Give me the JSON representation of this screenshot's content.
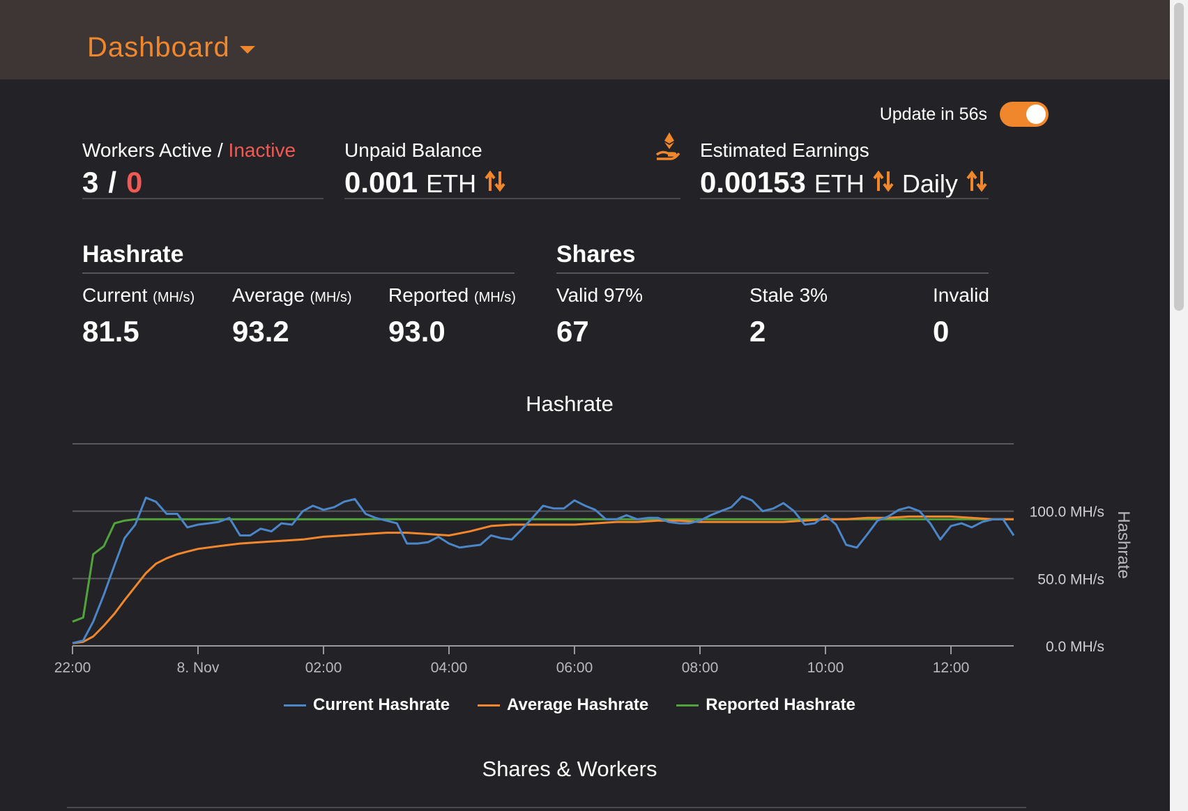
{
  "header": {
    "title": "Dashboard"
  },
  "update": {
    "label": "Update in 56s",
    "enabled": true
  },
  "workers": {
    "label_active": "Workers Active / ",
    "label_inactive": "Inactive",
    "active": "3",
    "separator": "/",
    "inactive": "0"
  },
  "unpaid": {
    "label": "Unpaid Balance",
    "value": "0.001",
    "unit": "ETH"
  },
  "earnings": {
    "label": "Estimated Earnings",
    "value": "0.00153",
    "unit": "ETH",
    "period": "Daily"
  },
  "hashrate": {
    "title": "Hashrate",
    "current": {
      "label": "Current",
      "unit": "(MH/s)",
      "value": "81.5"
    },
    "average": {
      "label": "Average",
      "unit": "(MH/s)",
      "value": "93.2"
    },
    "reported": {
      "label": "Reported",
      "unit": "(MH/s)",
      "value": "93.0"
    }
  },
  "shares": {
    "title": "Shares",
    "valid": {
      "label": "Valid 97%",
      "value": "67"
    },
    "stale": {
      "label": "Stale 3%",
      "value": "2"
    },
    "invalid": {
      "label": "Invalid",
      "value": "0"
    }
  },
  "colors": {
    "accent": "#f0872d",
    "current": "#4a86c8",
    "average": "#f0872d",
    "reported": "#52a33b",
    "inactive": "#ef5a55"
  },
  "chart_data": {
    "type": "line",
    "title": "Hashrate",
    "ylabel": "Hashrate",
    "xlabel": "",
    "ylim": [
      0,
      150
    ],
    "x_range_hours": [
      0,
      15
    ],
    "x_ticks": [
      {
        "h": 0,
        "label": "22:00"
      },
      {
        "h": 2,
        "label": "8. Nov"
      },
      {
        "h": 4,
        "label": "02:00"
      },
      {
        "h": 6,
        "label": "04:00"
      },
      {
        "h": 8,
        "label": "06:00"
      },
      {
        "h": 10,
        "label": "08:00"
      },
      {
        "h": 12,
        "label": "10:00"
      },
      {
        "h": 14,
        "label": "12:00"
      }
    ],
    "y_ticks": [
      {
        "v": 0,
        "label": "0.0 MH/s"
      },
      {
        "v": 50,
        "label": "50.0 MH/s"
      },
      {
        "v": 100,
        "label": "100.0 MH/s"
      }
    ],
    "series": [
      {
        "name": "Current Hashrate",
        "color": "#4a86c8",
        "points": [
          [
            0,
            2
          ],
          [
            0.17,
            4
          ],
          [
            0.33,
            18
          ],
          [
            0.5,
            38
          ],
          [
            0.67,
            60
          ],
          [
            0.83,
            80
          ],
          [
            1,
            90
          ],
          [
            1.17,
            110
          ],
          [
            1.33,
            107
          ],
          [
            1.5,
            98
          ],
          [
            1.67,
            98
          ],
          [
            1.83,
            88
          ],
          [
            2,
            90
          ],
          [
            2.17,
            91
          ],
          [
            2.33,
            92
          ],
          [
            2.5,
            95
          ],
          [
            2.67,
            82
          ],
          [
            2.83,
            82
          ],
          [
            3,
            87
          ],
          [
            3.17,
            85
          ],
          [
            3.33,
            91
          ],
          [
            3.5,
            90
          ],
          [
            3.67,
            100
          ],
          [
            3.83,
            104
          ],
          [
            4,
            101
          ],
          [
            4.17,
            103
          ],
          [
            4.33,
            107
          ],
          [
            4.5,
            109
          ],
          [
            4.67,
            98
          ],
          [
            4.83,
            95
          ],
          [
            5,
            93
          ],
          [
            5.17,
            91
          ],
          [
            5.33,
            76
          ],
          [
            5.5,
            76
          ],
          [
            5.67,
            77
          ],
          [
            5.83,
            81
          ],
          [
            6,
            76
          ],
          [
            6.17,
            73
          ],
          [
            6.33,
            74
          ],
          [
            6.5,
            75
          ],
          [
            6.67,
            82
          ],
          [
            6.83,
            80
          ],
          [
            7,
            79
          ],
          [
            7.17,
            87
          ],
          [
            7.33,
            95
          ],
          [
            7.5,
            104
          ],
          [
            7.67,
            102
          ],
          [
            7.83,
            102
          ],
          [
            8,
            108
          ],
          [
            8.17,
            104
          ],
          [
            8.33,
            101
          ],
          [
            8.5,
            94
          ],
          [
            8.67,
            94
          ],
          [
            8.83,
            97
          ],
          [
            9,
            94
          ],
          [
            9.17,
            95
          ],
          [
            9.33,
            95
          ],
          [
            9.5,
            92
          ],
          [
            9.67,
            91
          ],
          [
            9.83,
            91
          ],
          [
            10,
            93
          ],
          [
            10.17,
            97
          ],
          [
            10.33,
            100
          ],
          [
            10.5,
            103
          ],
          [
            10.67,
            111
          ],
          [
            10.83,
            108
          ],
          [
            11,
            100
          ],
          [
            11.17,
            102
          ],
          [
            11.33,
            106
          ],
          [
            11.5,
            100
          ],
          [
            11.67,
            90
          ],
          [
            11.83,
            91
          ],
          [
            12,
            97
          ],
          [
            12.17,
            90
          ],
          [
            12.33,
            75
          ],
          [
            12.5,
            73
          ],
          [
            12.67,
            83
          ],
          [
            12.83,
            93
          ],
          [
            13,
            96
          ],
          [
            13.17,
            101
          ],
          [
            13.33,
            103
          ],
          [
            13.5,
            100
          ],
          [
            13.67,
            91
          ],
          [
            13.83,
            79
          ],
          [
            14,
            89
          ],
          [
            14.17,
            91
          ],
          [
            14.33,
            88
          ],
          [
            14.5,
            92
          ],
          [
            14.67,
            94
          ],
          [
            14.83,
            94
          ],
          [
            15,
            82
          ]
        ]
      },
      {
        "name": "Average Hashrate",
        "color": "#f0872d",
        "points": [
          [
            0,
            2
          ],
          [
            0.17,
            3
          ],
          [
            0.33,
            7
          ],
          [
            0.5,
            15
          ],
          [
            0.67,
            24
          ],
          [
            0.83,
            34
          ],
          [
            1,
            44
          ],
          [
            1.17,
            54
          ],
          [
            1.33,
            61
          ],
          [
            1.5,
            65
          ],
          [
            1.67,
            68
          ],
          [
            1.83,
            70
          ],
          [
            2,
            72
          ],
          [
            2.33,
            74
          ],
          [
            2.67,
            76
          ],
          [
            3,
            77
          ],
          [
            3.33,
            78
          ],
          [
            3.67,
            79
          ],
          [
            4,
            81
          ],
          [
            4.33,
            82
          ],
          [
            4.67,
            83
          ],
          [
            5,
            84
          ],
          [
            5.33,
            84
          ],
          [
            5.67,
            83
          ],
          [
            6,
            82
          ],
          [
            6.33,
            85
          ],
          [
            6.67,
            89
          ],
          [
            7,
            90
          ],
          [
            7.33,
            90
          ],
          [
            7.67,
            90
          ],
          [
            8,
            90
          ],
          [
            8.33,
            91
          ],
          [
            8.67,
            92
          ],
          [
            9,
            92
          ],
          [
            9.33,
            93
          ],
          [
            9.67,
            93
          ],
          [
            10,
            92
          ],
          [
            10.33,
            92
          ],
          [
            10.67,
            92
          ],
          [
            11,
            92
          ],
          [
            11.33,
            92
          ],
          [
            11.67,
            93
          ],
          [
            12,
            94
          ],
          [
            12.33,
            94
          ],
          [
            12.67,
            95
          ],
          [
            13,
            95
          ],
          [
            13.33,
            96
          ],
          [
            13.67,
            96
          ],
          [
            14,
            96
          ],
          [
            14.33,
            95
          ],
          [
            14.67,
            94
          ],
          [
            15,
            94
          ]
        ]
      },
      {
        "name": "Reported Hashrate",
        "color": "#52a33b",
        "points": [
          [
            0,
            18
          ],
          [
            0.17,
            21
          ],
          [
            0.33,
            68
          ],
          [
            0.5,
            74
          ],
          [
            0.67,
            91
          ],
          [
            0.83,
            93
          ],
          [
            1,
            94
          ],
          [
            1.17,
            94
          ],
          [
            1.33,
            94
          ],
          [
            2,
            94
          ],
          [
            3,
            94
          ],
          [
            4,
            94
          ],
          [
            5,
            94
          ],
          [
            6,
            94
          ],
          [
            7,
            94
          ],
          [
            8,
            94
          ],
          [
            9,
            94
          ],
          [
            10,
            94
          ],
          [
            11,
            94
          ],
          [
            12,
            94
          ],
          [
            13,
            94
          ],
          [
            14,
            94
          ],
          [
            15,
            94
          ]
        ]
      }
    ]
  }
}
